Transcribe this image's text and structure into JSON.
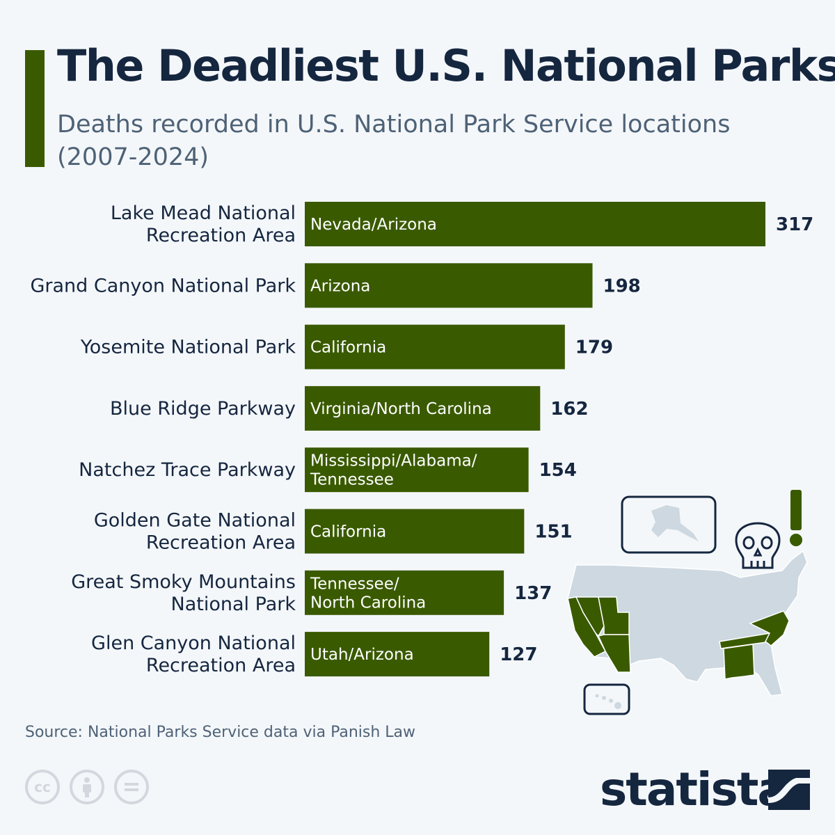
{
  "header": {
    "title": "The Deadliest U.S. National Parks",
    "subtitle": "Deaths recorded in U.S. National Park Service locations (2007-2024)"
  },
  "colors": {
    "bar": "#3a5a00",
    "title": "#15263f",
    "subtitle": "#4e6276",
    "background": "#f4f7fa",
    "map_grey": "#cdd8e0"
  },
  "chart_data": {
    "type": "bar",
    "orientation": "horizontal",
    "categories": [
      [
        "Lake Mead National",
        "Recreation Area"
      ],
      [
        "Grand Canyon National Park"
      ],
      [
        "Yosemite National Park"
      ],
      [
        "Blue Ridge Parkway"
      ],
      [
        "Natchez Trace Parkway"
      ],
      [
        "Golden Gate National",
        "Recreation Area"
      ],
      [
        "Great Smoky Mountains",
        "National Park"
      ],
      [
        "Glen Canyon National",
        "Recreation Area"
      ]
    ],
    "bar_labels": [
      [
        "Nevada/Arizona"
      ],
      [
        "Arizona"
      ],
      [
        "California"
      ],
      [
        "Virginia/North Carolina"
      ],
      [
        "Mississippi/Alabama/",
        "Tennessee"
      ],
      [
        "California"
      ],
      [
        "Tennessee/",
        "North Carolina"
      ],
      [
        "Utah/Arizona"
      ]
    ],
    "values": [
      317,
      198,
      179,
      162,
      154,
      151,
      137,
      127
    ],
    "xlim": [
      0,
      317
    ],
    "grid": false,
    "legend": "none"
  },
  "footer": {
    "source": "Source: National Parks Service data via Panish Law",
    "brand": "statista",
    "license_icons": [
      "cc-icon",
      "attribution-icon",
      "no-derivatives-icon"
    ]
  },
  "illustration": {
    "icons": [
      "alaska-map-icon",
      "skull-icon",
      "exclamation-icon",
      "us-map-icon",
      "hawaii-map-icon"
    ]
  }
}
